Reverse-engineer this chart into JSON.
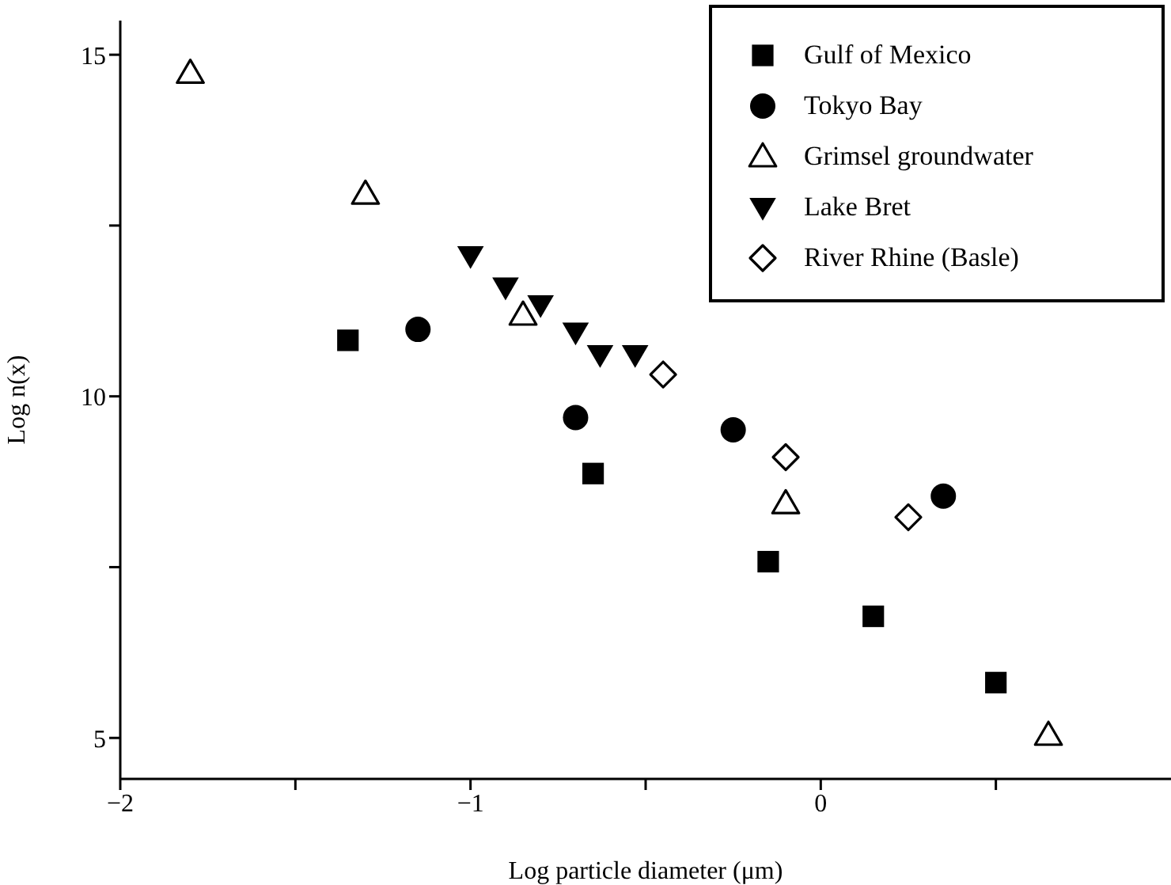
{
  "chart_data": {
    "type": "scatter",
    "xlabel": "Log particle diameter (μm)",
    "ylabel": "Log n(x)",
    "xlim": [
      -2,
      1
    ],
    "ylim": [
      4.4,
      15.5
    ],
    "xticks": [
      -2,
      {
        "value": -1.5,
        "label": null
      },
      -1,
      {
        "value": -0.5,
        "label": null
      },
      0,
      {
        "value": 0.5,
        "label": null
      }
    ],
    "yticks": [
      5,
      {
        "value": 7.5,
        "label": null
      },
      10,
      {
        "value": 12.5,
        "label": null
      },
      15
    ],
    "grid": false,
    "legend": "top right",
    "series": [
      {
        "name": "Gulf of Mexico",
        "color": "#000000",
        "marker": "square",
        "x": [
          -1.35,
          -0.65,
          -0.15,
          0.15,
          0.5
        ],
        "values": [
          10.82,
          8.87,
          7.58,
          6.78,
          5.81
        ]
      },
      {
        "name": "Tokyo Bay",
        "color": "#000000",
        "marker": "circle",
        "x": [
          -1.15,
          -0.7,
          -0.25,
          0.35
        ],
        "values": [
          10.98,
          9.69,
          9.51,
          8.54
        ]
      },
      {
        "name": "Grimsel groundwater",
        "color": "#000000",
        "marker": "triangle-open",
        "x": [
          -1.8,
          -1.3,
          -0.85,
          -0.1,
          0.65
        ],
        "values": [
          14.73,
          12.96,
          11.19,
          8.43,
          5.04
        ]
      },
      {
        "name": "Lake Bret",
        "color": "#000000",
        "marker": "triangle-down",
        "x": [
          -1.0,
          -0.9,
          -0.8,
          -0.7,
          -0.63,
          -0.53
        ],
        "values": [
          12.06,
          11.6,
          11.34,
          10.94,
          10.61,
          10.61
        ]
      },
      {
        "name": "River Rhine (Basle)",
        "color": "#000000",
        "marker": "diamond-open",
        "x": [
          -0.45,
          -0.1,
          0.25
        ],
        "values": [
          10.32,
          9.11,
          8.23
        ]
      }
    ]
  }
}
